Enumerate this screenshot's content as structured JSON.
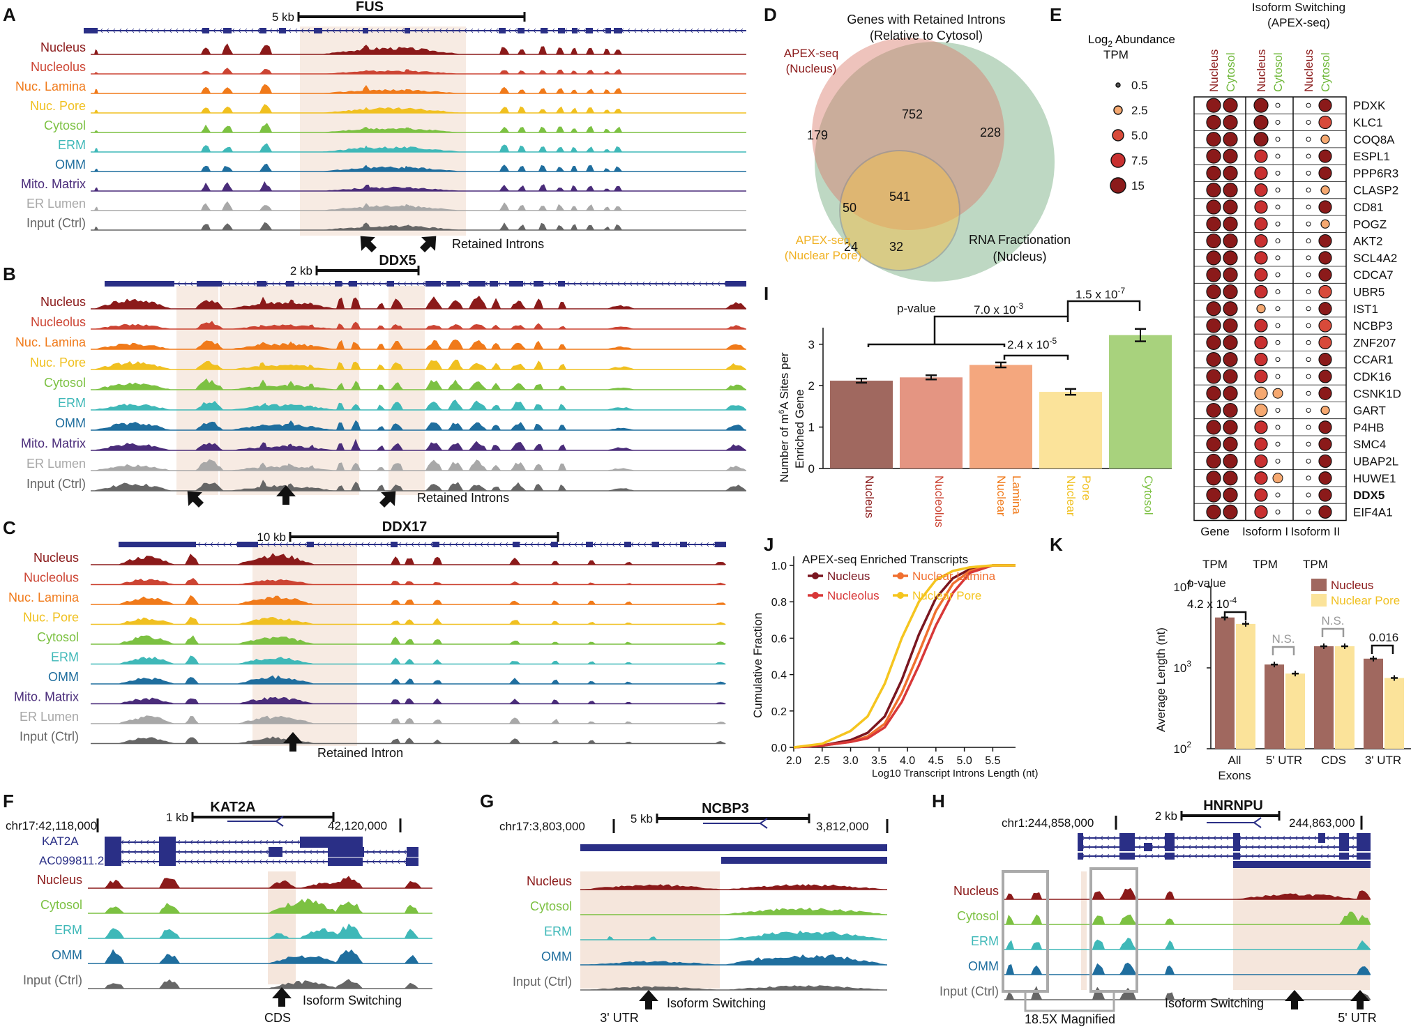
{
  "panels": {
    "A": "A",
    "B": "B",
    "C": "C",
    "D": "D",
    "E": "E",
    "F": "F",
    "G": "G",
    "H": "H",
    "I": "I",
    "J": "J",
    "K": "K"
  },
  "track_names": [
    "Nucleus",
    "Nucleolus",
    "Nuc. Lamina",
    "Nuc. Pore",
    "Cytosol",
    "ERM",
    "OMM",
    "Mito. Matrix",
    "ER Lumen",
    "Input (Ctrl)"
  ],
  "track_colors": [
    "#8b1a1a",
    "#cc4433",
    "#f07a1a",
    "#f0c020",
    "#7cc142",
    "#3fb8b8",
    "#1f6e9e",
    "#4a2c7a",
    "#a8a8a8",
    "#666666"
  ],
  "panel_A": {
    "gene": "FUS",
    "scale": "5 kb",
    "arrow_label": "Retained Introns"
  },
  "panel_B": {
    "gene": "DDX5",
    "scale": "2 kb",
    "arrow_label": "Retained Introns"
  },
  "panel_C": {
    "gene": "DDX17",
    "scale": "10 kb",
    "arrow_label": "Retained Intron"
  },
  "panel_D": {
    "title_line1": "Genes with Retained Introns",
    "title_line2": "(Relative to Cytosol)",
    "set1_line1": "APEX-seq",
    "set1_line2": "(Nucleus)",
    "set2_line1": "APEX-seq",
    "set2_line2": "(Nuclear Pore)",
    "set3_line1": "RNA Fractionation",
    "set3_line2": "(Nucleus)",
    "counts": [
      "752",
      "179",
      "228",
      "541",
      "50",
      "24",
      "32"
    ]
  },
  "panel_E": {
    "title_line1": "Isoform Switching",
    "title_line2": "(APEX-seq)",
    "legend_title_a": "Log",
    "legend_title_sub": "2",
    "legend_title_b": " Abundance",
    "legend_title_2": "TPM",
    "legend_values": [
      "0.5",
      "2.5",
      "5.0",
      "7.5",
      "15"
    ],
    "col_labels": [
      "Nucleus",
      "Cytosol",
      "Nucleus",
      "Cytosol",
      "Nucleus",
      "Cytosol"
    ],
    "genes": [
      "PDXK",
      "KLC1",
      "COQ8A",
      "ESPL1",
      "PPP6R3",
      "CLASP2",
      "CD81",
      "POGZ",
      "AKT2",
      "SCL4A2",
      "CDCA7",
      "UBR5",
      "IST1",
      "NCBP3",
      "ZNF207",
      "CCAR1",
      "CDK16",
      "CSNK1D",
      "GART",
      "P4HB",
      "SMC4",
      "UBAP2L",
      "HUWE1",
      "DDX5",
      "EIF4A1"
    ],
    "bottom_labels": [
      "Gene",
      "Isoform I",
      "Isoform II"
    ],
    "bottom_sub": [
      "TPM",
      "TPM",
      "TPM"
    ]
  },
  "panel_F": {
    "gene": "KAT2A",
    "scale": "1 kb",
    "coord_left": "chr17:42,118,000",
    "coord_right": "42,120,000",
    "transcripts": [
      "KAT2A",
      "AC099811.2"
    ],
    "tracks": [
      "Nucleus",
      "Cytosol",
      "ERM",
      "OMM",
      "Input (Ctrl)"
    ],
    "arrow_label": "Isoform Switching",
    "sub_label": "CDS"
  },
  "panel_G": {
    "gene": "NCBP3",
    "scale": "5 kb",
    "coord_left": "chr17:3,803,000",
    "coord_right": "3,812,000",
    "tracks": [
      "Nucleus",
      "Cytosol",
      "ERM",
      "OMM",
      "Input (Ctrl)"
    ],
    "arrow_label": "Isoform Switching",
    "sub_label": "3' UTR"
  },
  "panel_H": {
    "gene": "HNRNPU",
    "scale": "2 kb",
    "coord_left": "chr1:244,858,000",
    "coord_right": "244,863,000",
    "tracks": [
      "Nucleus",
      "Cytosol",
      "ERM",
      "OMM",
      "Input (Ctrl)"
    ],
    "arrow_label": "Isoform Switching",
    "sub_label": "5' UTR",
    "magnified": "18.5X Magnified"
  },
  "panel_I": {
    "pval_label": "p-value",
    "p1": "7.0 x 10",
    "p1e": "-3",
    "p2": "1.5 x 10",
    "p2e": "-7",
    "p3": "2.4 x 10",
    "p3e": "-5",
    "ylabel": "Number of m6A Sites per Enriched Gene"
  },
  "panel_J": {
    "legend_title": "APEX-seq Enriched Transcripts",
    "ylabel": "Cumulative Fraction",
    "xlabel": "Log10 Transcript Introns Length (nt)"
  },
  "panel_K": {
    "pval_label": "p-value",
    "p_all": "4.2 x 10",
    "p_all_e": "-4",
    "ns1": "N.S.",
    "ns2": "N.S.",
    "p_3utr": "0.016",
    "ylabel": "Average Length (nt)",
    "legend": [
      "Nucleus",
      "Nuclear Pore"
    ],
    "categories_line1": [
      "All",
      "5' UTR",
      "CDS",
      "3' UTR"
    ],
    "categories_line2": [
      "Exons",
      "",
      "",
      ""
    ]
  },
  "chart_data": [
    {
      "type": "bar",
      "panel": "I",
      "categories": [
        "Nucleus",
        "Nucleolus",
        "Nuclear Lamina",
        "Nuclear Pore",
        "Cytosol"
      ],
      "values": [
        2.12,
        2.2,
        2.5,
        1.85,
        3.22
      ],
      "errors": [
        0.05,
        0.05,
        0.06,
        0.07,
        0.15
      ],
      "colors": [
        "#a0685f",
        "#e49582",
        "#f4a77e",
        "#fbe39a",
        "#a8d27d"
      ],
      "ylim": [
        0,
        3.4
      ],
      "yticks": [
        "0",
        "1",
        "2",
        "3"
      ],
      "ylabel": "Number of m6A Sites per Enriched Gene"
    },
    {
      "type": "line",
      "panel": "J",
      "xlim": [
        2.0,
        5.9
      ],
      "ylim": [
        0,
        1.05
      ],
      "xticks": [
        "2.0",
        "2.5",
        "3.0",
        "3.5",
        "4.0",
        "4.5",
        "5.0",
        "5.5"
      ],
      "yticks": [
        "0.0",
        "0.2",
        "0.4",
        "0.6",
        "0.8",
        "1.0"
      ],
      "xlabel": "Log10 Transcript Introns Length (nt)",
      "ylabel": "Cumulative Fraction",
      "series": [
        {
          "name": "Nucleus",
          "color": "#7a1620",
          "points": [
            [
              2.0,
              0
            ],
            [
              2.5,
              0.01
            ],
            [
              3.0,
              0.04
            ],
            [
              3.3,
              0.08
            ],
            [
              3.6,
              0.17
            ],
            [
              3.9,
              0.37
            ],
            [
              4.2,
              0.62
            ],
            [
              4.5,
              0.82
            ],
            [
              4.8,
              0.93
            ],
            [
              5.1,
              0.98
            ],
            [
              5.5,
              1.0
            ],
            [
              5.9,
              1.0
            ]
          ]
        },
        {
          "name": "Nuclear Lamina",
          "color": "#f07030",
          "points": [
            [
              2.0,
              0
            ],
            [
              2.5,
              0.01
            ],
            [
              3.0,
              0.03
            ],
            [
              3.3,
              0.06
            ],
            [
              3.6,
              0.13
            ],
            [
              3.9,
              0.3
            ],
            [
              4.2,
              0.52
            ],
            [
              4.5,
              0.75
            ],
            [
              4.8,
              0.9
            ],
            [
              5.1,
              0.97
            ],
            [
              5.5,
              1.0
            ],
            [
              5.9,
              1.0
            ]
          ]
        },
        {
          "name": "Nucleolus",
          "color": "#d83838",
          "points": [
            [
              2.0,
              0
            ],
            [
              2.5,
              0.01
            ],
            [
              3.0,
              0.03
            ],
            [
              3.3,
              0.05
            ],
            [
              3.6,
              0.11
            ],
            [
              3.9,
              0.25
            ],
            [
              4.2,
              0.45
            ],
            [
              4.5,
              0.67
            ],
            [
              4.8,
              0.85
            ],
            [
              5.1,
              0.96
            ],
            [
              5.5,
              1.0
            ],
            [
              5.9,
              1.0
            ]
          ]
        },
        {
          "name": "Nuclear Pore",
          "color": "#f5c51f",
          "points": [
            [
              2.0,
              0
            ],
            [
              2.5,
              0.02
            ],
            [
              3.0,
              0.09
            ],
            [
              3.3,
              0.17
            ],
            [
              3.6,
              0.35
            ],
            [
              3.9,
              0.6
            ],
            [
              4.2,
              0.8
            ],
            [
              4.5,
              0.92
            ],
            [
              4.8,
              0.97
            ],
            [
              5.1,
              0.99
            ],
            [
              5.5,
              1.0
            ],
            [
              5.9,
              1.0
            ]
          ]
        }
      ]
    },
    {
      "type": "bar",
      "panel": "K",
      "categories": [
        "All Exons",
        "5' UTR",
        "CDS",
        "3' UTR"
      ],
      "log_scale": true,
      "ylim": [
        100,
        10000
      ],
      "yticks": [
        "10",
        "10",
        "10"
      ],
      "ytick_exps": [
        "2",
        "3",
        "4"
      ],
      "series": [
        {
          "name": "Nucleus",
          "color": "#a0685f",
          "values": [
            4200,
            1100,
            1850,
            1300
          ]
        },
        {
          "name": "Nuclear Pore",
          "color": "#fbe39a",
          "values": [
            3500,
            850,
            1850,
            750
          ]
        }
      ]
    }
  ]
}
